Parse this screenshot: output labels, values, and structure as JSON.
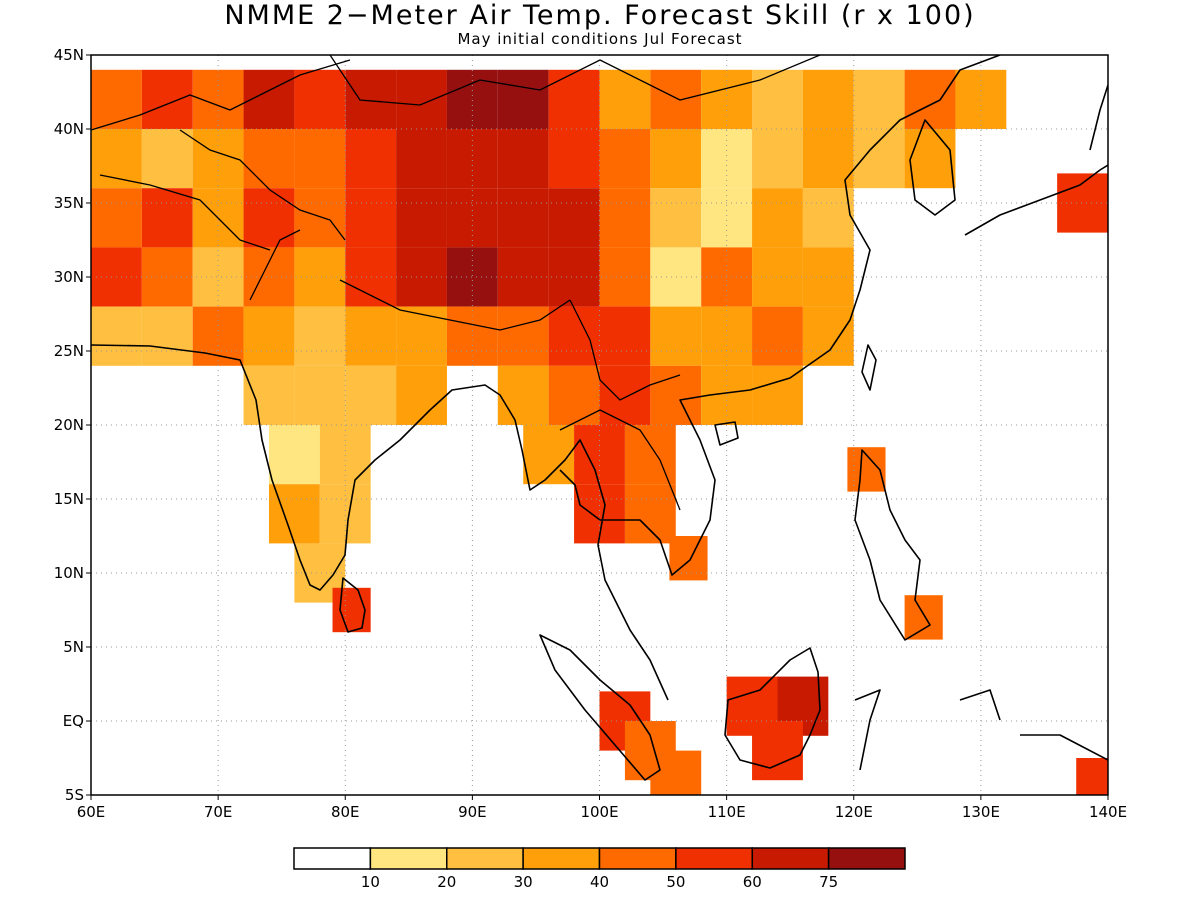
{
  "title": "NMME 2−Meter Air Temp. Forecast Skill (r x 100)",
  "subtitle": "May initial conditions  Jul Forecast",
  "axes": {
    "lat_labels": [
      "45N",
      "40N",
      "35N",
      "30N",
      "25N",
      "20N",
      "15N",
      "10N",
      "5N",
      "EQ",
      "5S"
    ],
    "lon_labels": [
      "60E",
      "70E",
      "80E",
      "90E",
      "100E",
      "110E",
      "120E",
      "130E",
      "140E"
    ],
    "lat_range": [
      -5,
      45
    ],
    "lon_range": [
      60,
      140
    ]
  },
  "legend": {
    "colors": [
      "#ffffff",
      "#ffe680",
      "#ffbf40",
      "#ffa00a",
      "#ff6a00",
      "#f03000",
      "#c81a00",
      "#961010"
    ],
    "tick_labels": [
      "10",
      "20",
      "30",
      "40",
      "50",
      "60",
      "75"
    ]
  },
  "skill_map": {
    "cells": [
      {
        "lon": 62,
        "lat": 42,
        "level": 4
      },
      {
        "lon": 66,
        "lat": 42,
        "level": 5
      },
      {
        "lon": 70,
        "lat": 42,
        "level": 4
      },
      {
        "lon": 74,
        "lat": 42,
        "level": 6
      },
      {
        "lon": 78,
        "lat": 42,
        "level": 5
      },
      {
        "lon": 82,
        "lat": 42,
        "level": 6
      },
      {
        "lon": 86,
        "lat": 42,
        "level": 6
      },
      {
        "lon": 90,
        "lat": 42,
        "level": 7
      },
      {
        "lon": 94,
        "lat": 42,
        "level": 7
      },
      {
        "lon": 98,
        "lat": 42,
        "level": 5
      },
      {
        "lon": 102,
        "lat": 42,
        "level": 3
      },
      {
        "lon": 106,
        "lat": 42,
        "level": 4
      },
      {
        "lon": 110,
        "lat": 42,
        "level": 3
      },
      {
        "lon": 114,
        "lat": 42,
        "level": 2
      },
      {
        "lon": 118,
        "lat": 42,
        "level": 3
      },
      {
        "lon": 122,
        "lat": 42,
        "level": 2
      },
      {
        "lon": 126,
        "lat": 42,
        "level": 4
      },
      {
        "lon": 130,
        "lat": 42,
        "level": 3
      },
      {
        "lon": 62,
        "lat": 38,
        "level": 3
      },
      {
        "lon": 66,
        "lat": 38,
        "level": 2
      },
      {
        "lon": 70,
        "lat": 38,
        "level": 3
      },
      {
        "lon": 74,
        "lat": 38,
        "level": 4
      },
      {
        "lon": 78,
        "lat": 38,
        "level": 4
      },
      {
        "lon": 82,
        "lat": 38,
        "level": 5
      },
      {
        "lon": 86,
        "lat": 38,
        "level": 6
      },
      {
        "lon": 90,
        "lat": 38,
        "level": 6
      },
      {
        "lon": 94,
        "lat": 38,
        "level": 6
      },
      {
        "lon": 98,
        "lat": 38,
        "level": 5
      },
      {
        "lon": 102,
        "lat": 38,
        "level": 4
      },
      {
        "lon": 106,
        "lat": 38,
        "level": 3
      },
      {
        "lon": 110,
        "lat": 38,
        "level": 1
      },
      {
        "lon": 114,
        "lat": 38,
        "level": 2
      },
      {
        "lon": 118,
        "lat": 38,
        "level": 3
      },
      {
        "lon": 122,
        "lat": 38,
        "level": 2
      },
      {
        "lon": 126,
        "lat": 38,
        "level": 3
      },
      {
        "lon": 138,
        "lat": 35,
        "level": 5
      },
      {
        "lon": 62,
        "lat": 34,
        "level": 4
      },
      {
        "lon": 66,
        "lat": 34,
        "level": 5
      },
      {
        "lon": 70,
        "lat": 34,
        "level": 3
      },
      {
        "lon": 74,
        "lat": 34,
        "level": 5
      },
      {
        "lon": 78,
        "lat": 34,
        "level": 4
      },
      {
        "lon": 82,
        "lat": 34,
        "level": 5
      },
      {
        "lon": 86,
        "lat": 34,
        "level": 6
      },
      {
        "lon": 90,
        "lat": 34,
        "level": 6
      },
      {
        "lon": 94,
        "lat": 34,
        "level": 6
      },
      {
        "lon": 98,
        "lat": 34,
        "level": 6
      },
      {
        "lon": 102,
        "lat": 34,
        "level": 4
      },
      {
        "lon": 106,
        "lat": 34,
        "level": 2
      },
      {
        "lon": 110,
        "lat": 34,
        "level": 1
      },
      {
        "lon": 114,
        "lat": 34,
        "level": 3
      },
      {
        "lon": 118,
        "lat": 34,
        "level": 2
      },
      {
        "lon": 62,
        "lat": 30,
        "level": 5
      },
      {
        "lon": 66,
        "lat": 30,
        "level": 4
      },
      {
        "lon": 70,
        "lat": 30,
        "level": 2
      },
      {
        "lon": 74,
        "lat": 30,
        "level": 4
      },
      {
        "lon": 78,
        "lat": 30,
        "level": 3
      },
      {
        "lon": 82,
        "lat": 30,
        "level": 5
      },
      {
        "lon": 86,
        "lat": 30,
        "level": 6
      },
      {
        "lon": 90,
        "lat": 30,
        "level": 7
      },
      {
        "lon": 94,
        "lat": 30,
        "level": 6
      },
      {
        "lon": 98,
        "lat": 30,
        "level": 6
      },
      {
        "lon": 102,
        "lat": 30,
        "level": 4
      },
      {
        "lon": 106,
        "lat": 30,
        "level": 1
      },
      {
        "lon": 110,
        "lat": 30,
        "level": 4
      },
      {
        "lon": 114,
        "lat": 30,
        "level": 3
      },
      {
        "lon": 118,
        "lat": 30,
        "level": 3
      },
      {
        "lon": 62,
        "lat": 26,
        "level": 2
      },
      {
        "lon": 66,
        "lat": 26,
        "level": 2
      },
      {
        "lon": 70,
        "lat": 26,
        "level": 4
      },
      {
        "lon": 74,
        "lat": 26,
        "level": 3
      },
      {
        "lon": 78,
        "lat": 26,
        "level": 2
      },
      {
        "lon": 82,
        "lat": 26,
        "level": 3
      },
      {
        "lon": 86,
        "lat": 26,
        "level": 3
      },
      {
        "lon": 90,
        "lat": 26,
        "level": 4
      },
      {
        "lon": 94,
        "lat": 26,
        "level": 4
      },
      {
        "lon": 98,
        "lat": 26,
        "level": 5
      },
      {
        "lon": 102,
        "lat": 26,
        "level": 5
      },
      {
        "lon": 106,
        "lat": 26,
        "level": 3
      },
      {
        "lon": 110,
        "lat": 26,
        "level": 3
      },
      {
        "lon": 114,
        "lat": 26,
        "level": 4
      },
      {
        "lon": 118,
        "lat": 26,
        "level": 3
      },
      {
        "lon": 74,
        "lat": 22,
        "level": 2
      },
      {
        "lon": 78,
        "lat": 22,
        "level": 2
      },
      {
        "lon": 82,
        "lat": 22,
        "level": 2
      },
      {
        "lon": 86,
        "lat": 22,
        "level": 3
      },
      {
        "lon": 94,
        "lat": 22,
        "level": 3
      },
      {
        "lon": 98,
        "lat": 22,
        "level": 4
      },
      {
        "lon": 102,
        "lat": 22,
        "level": 5
      },
      {
        "lon": 106,
        "lat": 22,
        "level": 4
      },
      {
        "lon": 110,
        "lat": 22,
        "level": 3
      },
      {
        "lon": 114,
        "lat": 22,
        "level": 3
      },
      {
        "lon": 76,
        "lat": 18,
        "level": 1
      },
      {
        "lon": 80,
        "lat": 18,
        "level": 2
      },
      {
        "lon": 96,
        "lat": 18,
        "level": 3
      },
      {
        "lon": 100,
        "lat": 18,
        "level": 5
      },
      {
        "lon": 104,
        "lat": 18,
        "level": 4
      },
      {
        "lon": 76,
        "lat": 14,
        "level": 3
      },
      {
        "lon": 80,
        "lat": 14,
        "level": 2
      },
      {
        "lon": 100,
        "lat": 14,
        "level": 5
      },
      {
        "lon": 104,
        "lat": 14,
        "level": 4
      },
      {
        "lon": 107,
        "lat": 11,
        "level": 4
      },
      {
        "lon": 78,
        "lat": 10,
        "level": 2
      },
      {
        "lon": 80.5,
        "lat": 7.5,
        "level": 5
      },
      {
        "lon": 112,
        "lat": 1,
        "level": 5
      },
      {
        "lon": 116,
        "lat": 1,
        "level": 6
      },
      {
        "lon": 114,
        "lat": -2,
        "level": 5
      },
      {
        "lon": 102,
        "lat": 0,
        "level": 5
      },
      {
        "lon": 104,
        "lat": -2,
        "level": 4
      },
      {
        "lon": 106,
        "lat": -4,
        "level": 4
      },
      {
        "lon": 125.5,
        "lat": 7,
        "level": 4
      },
      {
        "lon": 121,
        "lat": 17,
        "level": 4
      },
      {
        "lon": 139,
        "lat": -4,
        "level": 5
      }
    ]
  }
}
